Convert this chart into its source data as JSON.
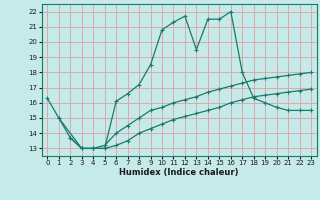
{
  "xlabel": "Humidex (Indice chaleur)",
  "xlim": [
    -0.5,
    23.5
  ],
  "ylim": [
    12.5,
    22.5
  ],
  "xticks": [
    0,
    1,
    2,
    3,
    4,
    5,
    6,
    7,
    8,
    9,
    10,
    11,
    12,
    13,
    14,
    15,
    16,
    17,
    18,
    19,
    20,
    21,
    22,
    23
  ],
  "yticks": [
    13,
    14,
    15,
    16,
    17,
    18,
    19,
    20,
    21,
    22
  ],
  "bg_color": "#c6eaea",
  "grid_color": "#dda0a0",
  "line_color": "#1a7a6a",
  "line_upper_x": [
    0,
    1,
    3,
    4,
    5,
    6,
    7,
    8,
    9,
    10,
    11,
    12,
    13,
    14,
    15,
    16,
    17,
    18,
    19,
    20,
    21,
    22,
    23
  ],
  "line_upper_y": [
    16.3,
    15.0,
    13.0,
    13.0,
    13.0,
    16.1,
    16.6,
    17.2,
    18.5,
    20.8,
    21.3,
    21.7,
    19.5,
    21.5,
    21.5,
    22.0,
    18.0,
    16.3,
    16.0,
    15.7,
    15.5,
    15.5,
    15.5
  ],
  "line_mid_x": [
    1,
    2,
    3,
    4,
    5,
    6,
    7,
    8,
    9,
    10,
    11,
    12,
    13,
    14,
    15,
    16,
    17,
    18,
    19,
    20,
    21,
    22,
    23
  ],
  "line_mid_y": [
    15.0,
    13.7,
    13.0,
    13.0,
    13.2,
    14.0,
    14.5,
    15.0,
    15.5,
    15.7,
    16.0,
    16.2,
    16.4,
    16.7,
    16.9,
    17.1,
    17.3,
    17.5,
    17.6,
    17.7,
    17.8,
    17.9,
    18.0
  ],
  "line_low_x": [
    2,
    3,
    4,
    5,
    6,
    7,
    8,
    9,
    10,
    11,
    12,
    13,
    14,
    15,
    16,
    17,
    18,
    19,
    20,
    21,
    22,
    23
  ],
  "line_low_y": [
    13.7,
    13.0,
    13.0,
    13.0,
    13.2,
    13.5,
    14.0,
    14.3,
    14.6,
    14.9,
    15.1,
    15.3,
    15.5,
    15.7,
    16.0,
    16.2,
    16.4,
    16.5,
    16.6,
    16.7,
    16.8,
    16.9
  ]
}
